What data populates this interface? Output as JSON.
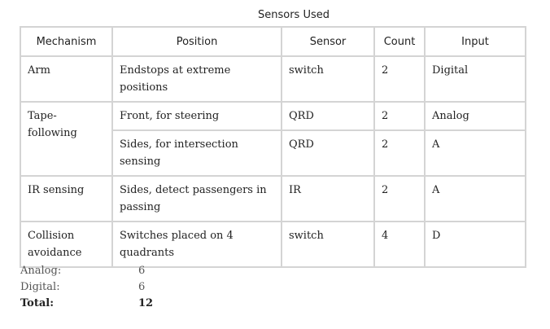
{
  "title": "Sensors Used",
  "table": {
    "headers": [
      "Mechanism",
      "Position",
      "Sensor",
      "Count",
      "Input"
    ],
    "rows": [
      {
        "mechanism": "Arm",
        "position": "Endstops at extreme positions",
        "sensor": "switch",
        "count": "2",
        "input": "Digital"
      },
      {
        "mechanism": "Tape-following",
        "position": "Front, for steering",
        "sensor": "QRD",
        "count": "2",
        "input": "Analog"
      },
      {
        "mechanism": "",
        "position": "Sides, for intersection sensing",
        "sensor": "QRD",
        "count": "2",
        "input": "A"
      },
      {
        "mechanism": "IR sensing",
        "position": "Sides, detect passengers in passing",
        "sensor": "IR",
        "count": "2",
        "input": "A"
      },
      {
        "mechanism": "Collision avoidance",
        "position": "Switches placed on 4 quadrants",
        "sensor": "switch",
        "count": "4",
        "input": "D"
      }
    ]
  },
  "totals": {
    "analog_label": "Analog:",
    "analog_value": "6",
    "digital_label": "Digital:",
    "digital_value": "6",
    "total_label": "Total:",
    "total_value": "12"
  }
}
